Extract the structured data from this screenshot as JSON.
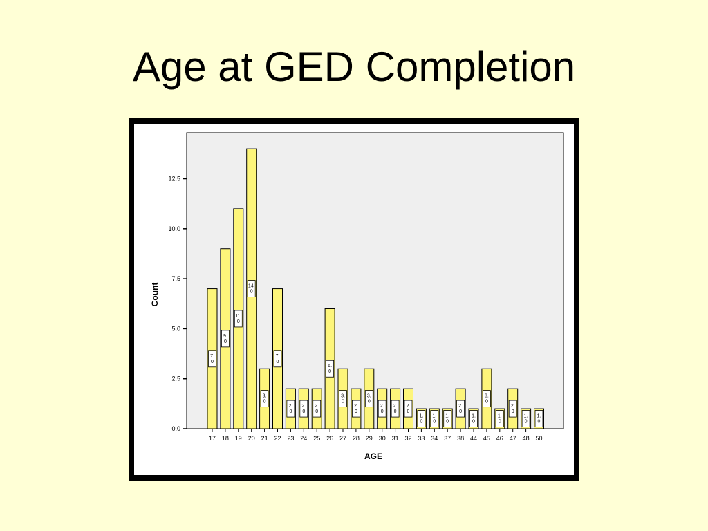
{
  "slide": {
    "title": "Age at GED Completion"
  },
  "chart_data": {
    "type": "bar",
    "categories": [
      "17",
      "18",
      "19",
      "20",
      "21",
      "22",
      "23",
      "24",
      "25",
      "26",
      "27",
      "28",
      "29",
      "30",
      "31",
      "32",
      "33",
      "34",
      "37",
      "38",
      "44",
      "45",
      "46",
      "47",
      "48",
      "50"
    ],
    "values": [
      7,
      9,
      11,
      14,
      3,
      7,
      2,
      2,
      2,
      6,
      3,
      2,
      3,
      2,
      2,
      2,
      1,
      1,
      1,
      2,
      1,
      3,
      1,
      2,
      1,
      1
    ],
    "data_labels": [
      "7.0",
      "9.0",
      "11.0",
      "14.0",
      "3.0",
      "7.0",
      "2.0",
      "2.0",
      "2.0",
      "6.0",
      "3.0",
      "2.0",
      "3.0",
      "2.0",
      "2.0",
      "2.0",
      "1.0",
      "1.0",
      "1.0",
      "2.0",
      "1.0",
      "3.0",
      "1.0",
      "2.0",
      "1.0",
      "1.0"
    ],
    "xlabel": "AGE",
    "ylabel": "Count",
    "ylim": [
      0,
      14.8
    ],
    "yticks": [
      0,
      2.5,
      5,
      7.5,
      10,
      12.5
    ],
    "ytick_labels": [
      "0.0",
      "2.5",
      "5.0",
      "7.5",
      "10.0",
      "12.5"
    ],
    "grid": false,
    "colors": {
      "bar": "#fdf57a",
      "plot_bg": "#efefef",
      "page_bg": "#ffffd6",
      "frame": "#000000"
    }
  }
}
